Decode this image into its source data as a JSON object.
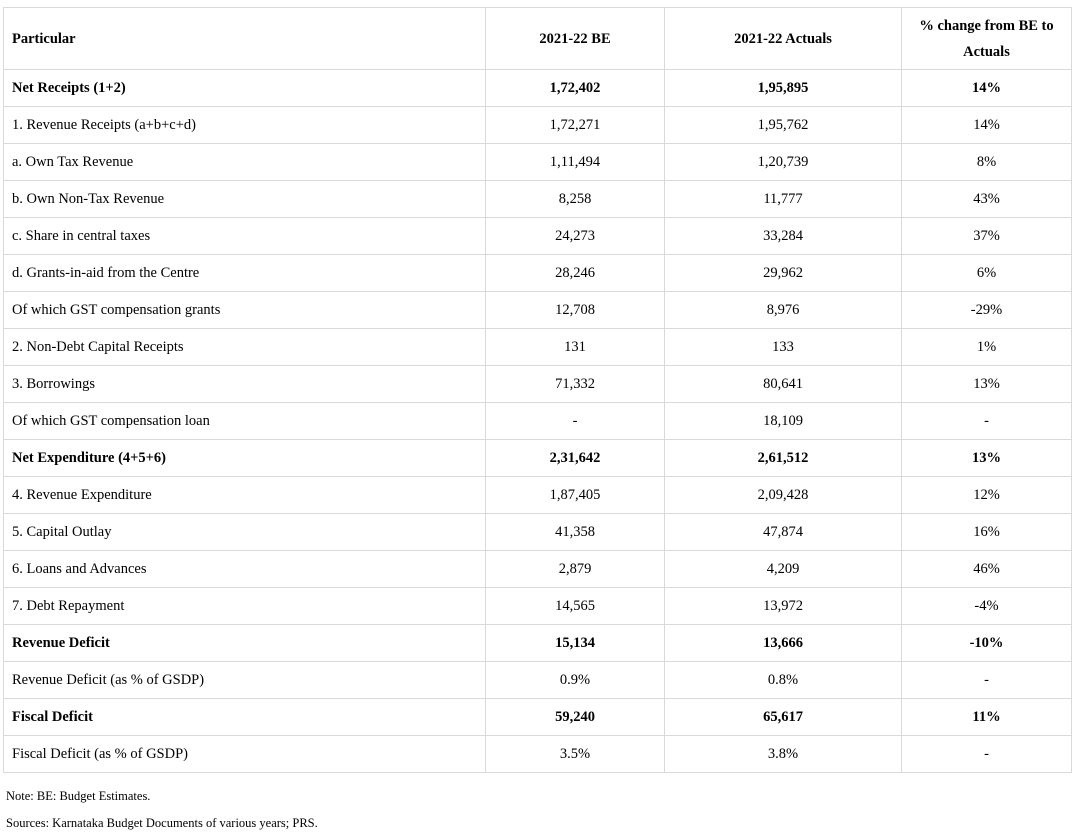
{
  "table": {
    "headers": [
      "Particular",
      "2021-22 BE",
      "2021-22 Actuals",
      "% change from BE to Actuals"
    ],
    "rows": [
      {
        "label": "Net Receipts (1+2)",
        "be": "1,72,402",
        "actuals": "1,95,895",
        "change": "14%",
        "bold": true
      },
      {
        "label": "1.  Revenue Receipts (a+b+c+d)",
        "be": "1,72,271",
        "actuals": "1,95,762",
        "change": "14%",
        "bold": false
      },
      {
        "label": "a.  Own Tax Revenue",
        "be": "1,11,494",
        "actuals": "1,20,739",
        "change": "8%",
        "bold": false
      },
      {
        "label": "b.  Own Non-Tax Revenue",
        "be": "8,258",
        "actuals": "11,777",
        "change": "43%",
        "bold": false
      },
      {
        "label": "c.  Share in central taxes",
        "be": "24,273",
        "actuals": "33,284",
        "change": "37%",
        "bold": false
      },
      {
        "label": "d.  Grants-in-aid from the Centre",
        "be": "28,246",
        "actuals": "29,962",
        "change": "6%",
        "bold": false
      },
      {
        "label": "Of which GST compensation grants",
        "be": "12,708",
        "actuals": "8,976",
        "change": "-29%",
        "bold": false
      },
      {
        "label": "2.  Non-Debt Capital Receipts",
        "be": "131",
        "actuals": "133",
        "change": "1%",
        "bold": false
      },
      {
        "label": "3.  Borrowings",
        "be": "71,332",
        "actuals": "80,641",
        "change": "13%",
        "bold": false
      },
      {
        "label": "Of which GST compensation loan",
        "be": "-",
        "actuals": "18,109",
        "change": "-",
        "bold": false
      },
      {
        "label": "Net Expenditure (4+5+6)",
        "be": "2,31,642",
        "actuals": "2,61,512",
        "change": "13%",
        "bold": true
      },
      {
        "label": "4.  Revenue Expenditure",
        "be": "1,87,405",
        "actuals": "2,09,428",
        "change": "12%",
        "bold": false
      },
      {
        "label": "5.  Capital Outlay",
        "be": "41,358",
        "actuals": "47,874",
        "change": "16%",
        "bold": false
      },
      {
        "label": "6.  Loans and Advances",
        "be": "2,879",
        "actuals": "4,209",
        "change": "46%",
        "bold": false
      },
      {
        "label": "7.  Debt Repayment",
        "be": "14,565",
        "actuals": "13,972",
        "change": "-4%",
        "bold": false
      },
      {
        "label": "Revenue Deficit",
        "be": "15,134",
        "actuals": "13,666",
        "change": "-10%",
        "bold": true
      },
      {
        "label": "Revenue Deficit (as % of GSDP)",
        "be": "0.9%",
        "actuals": "0.8%",
        "change": "-",
        "bold": false
      },
      {
        "label": "Fiscal Deficit",
        "be": "59,240",
        "actuals": "65,617",
        "change": "11%",
        "bold": true
      },
      {
        "label": "Fiscal Deficit (as % of GSDP)",
        "be": "3.5%",
        "actuals": "3.8%",
        "change": "-",
        "bold": false
      }
    ]
  },
  "notes": {
    "note": "Note: BE: Budget Estimates.",
    "sources": "Sources: Karnataka Budget Documents of various years; PRS."
  }
}
